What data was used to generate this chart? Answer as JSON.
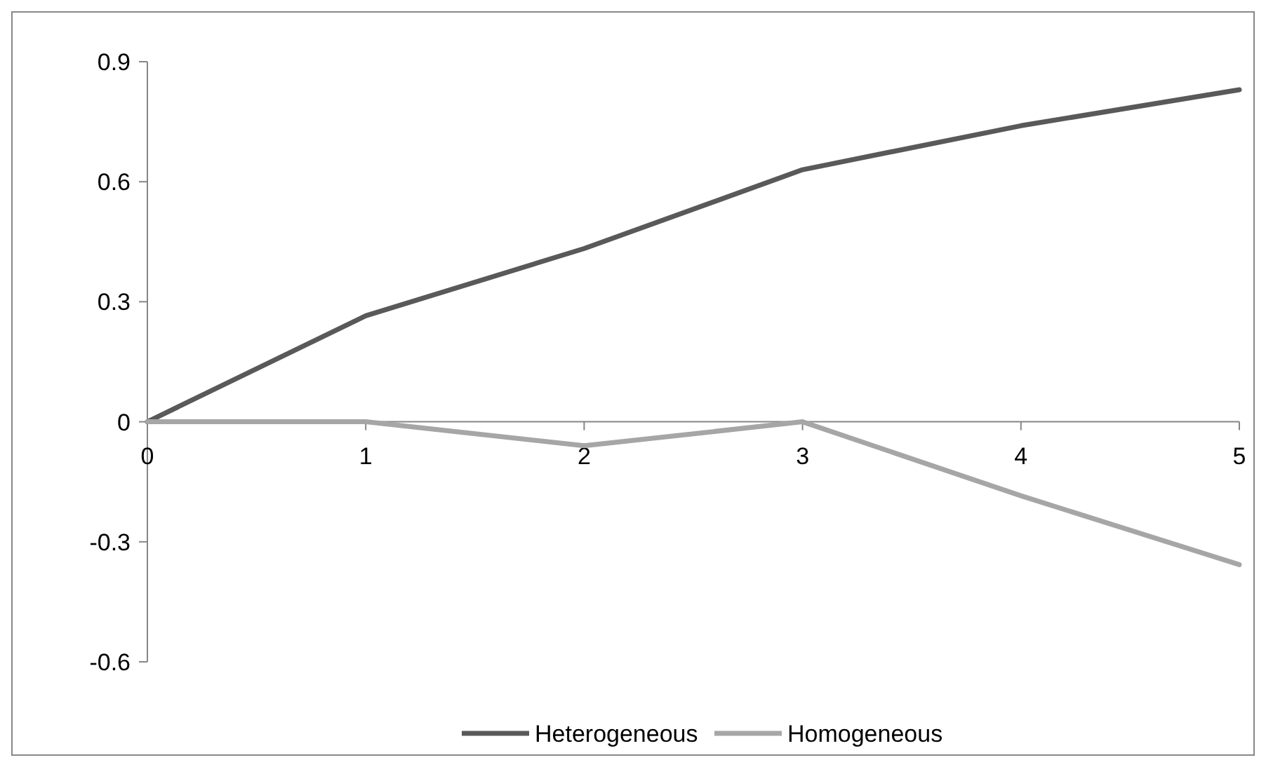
{
  "chart_data": {
    "type": "line",
    "x": [
      0,
      1,
      2,
      3,
      4,
      5
    ],
    "xlim": [
      0,
      5
    ],
    "xticks": [
      0,
      1,
      2,
      3,
      4,
      5
    ],
    "ylim": [
      -0.6,
      0.9
    ],
    "yticks": [
      -0.6,
      -0.3,
      0,
      0.3,
      0.6,
      0.9
    ],
    "grid": false,
    "legend": "bottom",
    "marker": "none",
    "line_style": "solid",
    "series": [
      {
        "name": "Heterogeneous",
        "color": "#595959",
        "values": [
          0,
          0.265,
          0.433,
          0.63,
          0.74,
          0.83
        ]
      },
      {
        "name": "Homogeneous",
        "color": "#a6a6a6",
        "values": [
          0,
          0,
          -0.06,
          0,
          -0.185,
          -0.357
        ]
      }
    ]
  }
}
